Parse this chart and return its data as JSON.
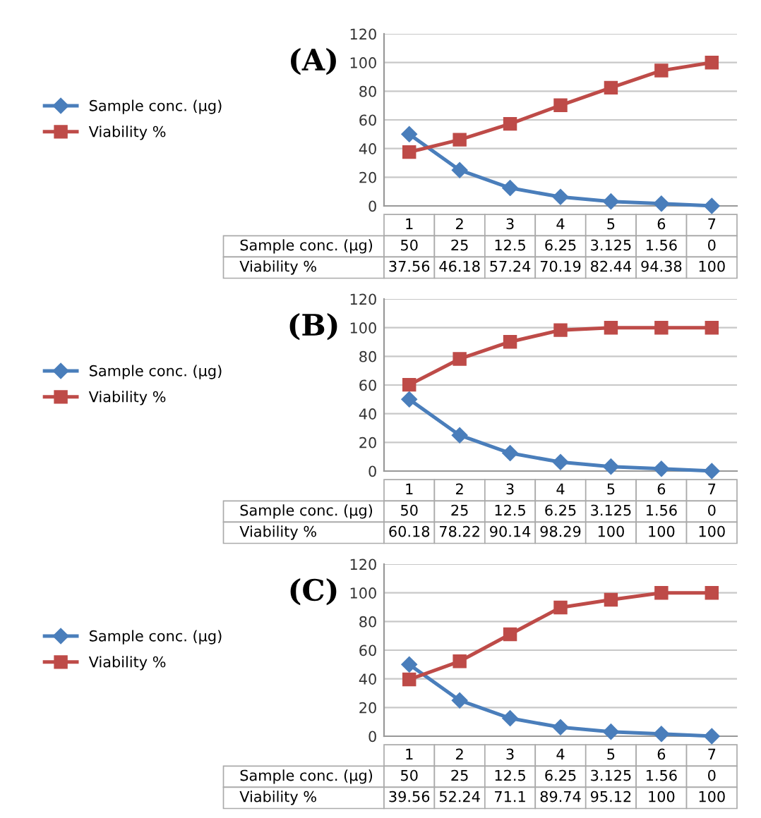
{
  "chart_data": [
    {
      "type": "line",
      "title": "(A)",
      "categories": [
        "1",
        "2",
        "3",
        "4",
        "5",
        "6",
        "7"
      ],
      "ylim": [
        0,
        120
      ],
      "yticks": [
        0,
        20,
        40,
        60,
        80,
        100,
        120
      ],
      "grid": "y",
      "legend": "left",
      "data_labels": true,
      "series": [
        {
          "name": "Sample conc. (µg)",
          "color": "#4a7ebb",
          "marker": "diamond",
          "values": [
            50,
            25,
            12.5,
            6.25,
            3.125,
            1.56,
            0
          ]
        },
        {
          "name": "Viability %",
          "color": "#be4b48",
          "marker": "square",
          "values": [
            37.56,
            46.18,
            57.24,
            70.19,
            82.44,
            94.38,
            100
          ]
        }
      ]
    },
    {
      "type": "line",
      "title": "(B)",
      "categories": [
        "1",
        "2",
        "3",
        "4",
        "5",
        "6",
        "7"
      ],
      "ylim": [
        0,
        120
      ],
      "yticks": [
        0,
        20,
        40,
        60,
        80,
        100,
        120
      ],
      "grid": "y",
      "legend": "left",
      "data_labels": true,
      "series": [
        {
          "name": "Sample conc. (µg)",
          "color": "#4a7ebb",
          "marker": "diamond",
          "values": [
            50,
            25,
            12.5,
            6.25,
            3.125,
            1.56,
            0
          ]
        },
        {
          "name": "Viability %",
          "color": "#be4b48",
          "marker": "square",
          "values": [
            60.18,
            78.22,
            90.14,
            98.29,
            100,
            100,
            100
          ]
        }
      ]
    },
    {
      "type": "line",
      "title": "(C)",
      "categories": [
        "1",
        "2",
        "3",
        "4",
        "5",
        "6",
        "7"
      ],
      "ylim": [
        0,
        120
      ],
      "yticks": [
        0,
        20,
        40,
        60,
        80,
        100,
        120
      ],
      "grid": "y",
      "legend": "left",
      "data_labels": true,
      "series": [
        {
          "name": "Sample conc. (µg)",
          "color": "#4a7ebb",
          "marker": "diamond",
          "values": [
            50,
            25,
            12.5,
            6.25,
            3.125,
            1.56,
            0
          ]
        },
        {
          "name": "Viability %",
          "color": "#be4b48",
          "marker": "square",
          "values": [
            39.56,
            52.24,
            71.1,
            89.74,
            95.12,
            100,
            100
          ]
        }
      ]
    }
  ]
}
